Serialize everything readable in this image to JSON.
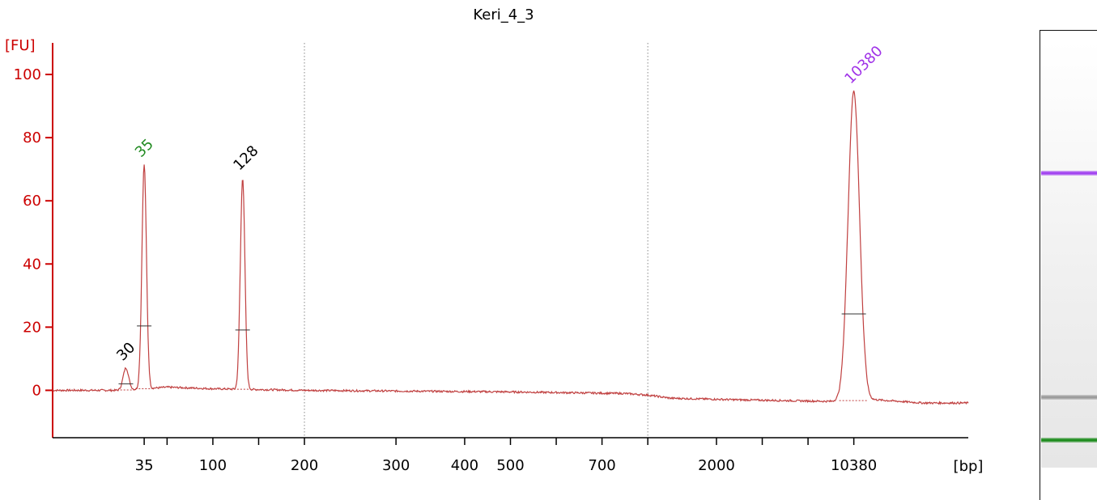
{
  "chart_data": {
    "type": "line",
    "title": "Keri_4_3",
    "ylabel": "[FU]",
    "xlabel": "[bp]",
    "ylim": [
      -15,
      110
    ],
    "y_ticks": [
      0,
      20,
      40,
      60,
      80,
      100
    ],
    "x_ticks": [
      {
        "label": "35",
        "pos": 4
      },
      {
        "label": "",
        "pos": 5
      },
      {
        "label": "100",
        "pos": 7
      },
      {
        "label": "",
        "pos": 9
      },
      {
        "label": "200",
        "pos": 11
      },
      {
        "label": "300",
        "pos": 15
      },
      {
        "label": "400",
        "pos": 18
      },
      {
        "label": "500",
        "pos": 20
      },
      {
        "label": "",
        "pos": 22
      },
      {
        "label": "700",
        "pos": 24
      },
      {
        "label": "",
        "pos": 26
      },
      {
        "label": "2000",
        "pos": 29
      },
      {
        "label": "",
        "pos": 31
      },
      {
        "label": "",
        "pos": 33
      },
      {
        "label": "10380",
        "pos": 35
      }
    ],
    "x_range": [
      0,
      40
    ],
    "vlines": [
      11,
      26
    ],
    "baseline": [
      [
        0,
        0
      ],
      [
        3,
        0
      ],
      [
        5,
        1
      ],
      [
        7,
        0.5
      ],
      [
        11,
        0
      ],
      [
        20,
        -0.5
      ],
      [
        25,
        -1
      ],
      [
        26,
        -1.5
      ],
      [
        27,
        -2.5
      ],
      [
        30,
        -3
      ],
      [
        34,
        -3.5
      ],
      [
        36,
        -3
      ],
      [
        38,
        -4
      ],
      [
        40,
        -4
      ]
    ],
    "peaks": [
      {
        "label": "30",
        "pos": 3.2,
        "height": 7,
        "width": 0.12,
        "color": "#000000"
      },
      {
        "label": "35",
        "pos": 4,
        "height": 71,
        "width": 0.1,
        "color": "#228b22"
      },
      {
        "label": "128",
        "pos": 8.3,
        "height": 67,
        "width": 0.1,
        "color": "#000000"
      },
      {
        "label": "10380",
        "pos": 35,
        "height": 98,
        "width": 0.25,
        "color": "#a033e8"
      }
    ],
    "gel_bands": [
      {
        "name": "upper-marker",
        "frac": 0.31,
        "color": "#a040f0"
      },
      {
        "name": "sample",
        "frac": 0.835,
        "color": "#9a9a9a"
      },
      {
        "name": "lower-marker",
        "frac": 0.935,
        "color": "#1a8a1a"
      }
    ],
    "colors": {
      "axis": "#cc0000",
      "trace": "#c04040"
    }
  }
}
